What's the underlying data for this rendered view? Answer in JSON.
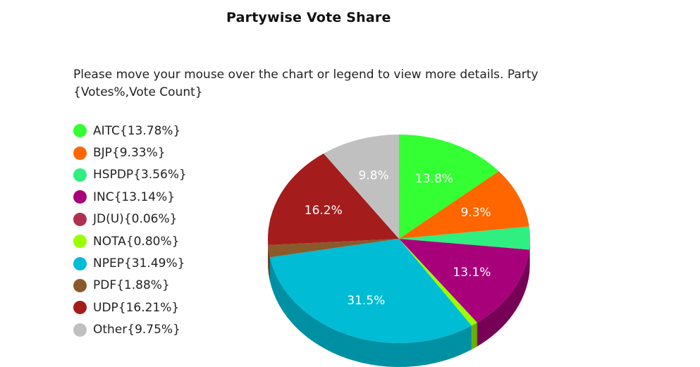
{
  "title": "Partywise Vote Share",
  "instructions": "Please move your mouse over the chart or legend to view more details. Party {Votes%,Vote Count}",
  "chart_data": {
    "type": "pie",
    "style": "3d",
    "title": "Partywise Vote Share",
    "legend_position": "left",
    "slices": [
      {
        "label": "AITC",
        "value": 13.78,
        "legend_text": "AITC{13.78%}",
        "slice_label": "13.8%",
        "color": "#33ff33",
        "side_color": "#22b022"
      },
      {
        "label": "BJP",
        "value": 9.33,
        "legend_text": "BJP{9.33%}",
        "slice_label": "9.3%",
        "color": "#ff6600",
        "side_color": "#b34700"
      },
      {
        "label": "HSPDP",
        "value": 3.56,
        "legend_text": "HSPDP{3.56%}",
        "slice_label": "",
        "color": "#2eef80",
        "side_color": "#20a85a"
      },
      {
        "label": "INC",
        "value": 13.14,
        "legend_text": "INC{13.14%}",
        "slice_label": "13.1%",
        "color": "#a8007a",
        "side_color": "#760056"
      },
      {
        "label": "JD(U)",
        "value": 0.06,
        "legend_text": "JD(U){0.06%}",
        "slice_label": "",
        "color": "#b03050",
        "side_color": "#7a2038"
      },
      {
        "label": "NOTA",
        "value": 0.8,
        "legend_text": "NOTA{0.80%}",
        "slice_label": "",
        "color": "#99ff00",
        "side_color": "#66b000"
      },
      {
        "label": "NPEP",
        "value": 31.49,
        "legend_text": "NPEP{31.49%}",
        "slice_label": "31.5%",
        "color": "#00bcd4",
        "side_color": "#0090a4"
      },
      {
        "label": "PDF",
        "value": 1.88,
        "legend_text": "PDF{1.88%}",
        "slice_label": "",
        "color": "#8b5a2b",
        "side_color": "#5e3c1c"
      },
      {
        "label": "UDP",
        "value": 16.21,
        "legend_text": "UDP{16.21%}",
        "slice_label": "16.2%",
        "color": "#a51c1c",
        "side_color": "#701313"
      },
      {
        "label": "Other",
        "value": 9.75,
        "legend_text": "Other{9.75%}",
        "slice_label": "9.8%",
        "color": "#c0c0c0",
        "side_color": "#8a8a8a"
      }
    ]
  }
}
